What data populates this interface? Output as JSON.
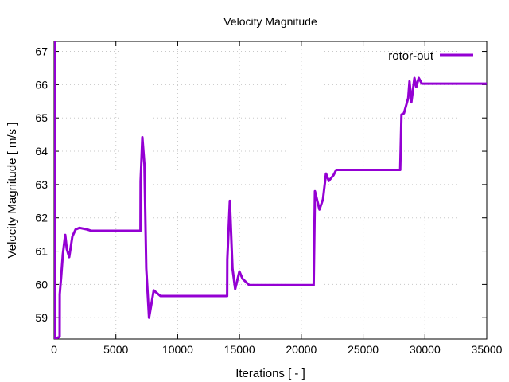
{
  "chart_data": {
    "type": "line",
    "title": "Velocity Magnitude",
    "xlabel": "Iterations [ - ]",
    "ylabel": "Velocity Magnitude [ m/s ]",
    "xlim": [
      0,
      35000
    ],
    "ylim": [
      58.36,
      67.3
    ],
    "xticks": [
      0,
      5000,
      10000,
      15000,
      20000,
      25000,
      30000,
      35000
    ],
    "yticks": [
      59,
      60,
      61,
      62,
      63,
      64,
      65,
      66,
      67
    ],
    "grid": true,
    "legend_position": "top-right",
    "series": [
      {
        "name": "rotor-out",
        "color": "#9400d3",
        "points": [
          [
            0,
            67.3
          ],
          [
            30,
            67.3
          ],
          [
            60,
            58.36
          ],
          [
            450,
            58.43
          ],
          [
            460,
            59.7
          ],
          [
            580,
            60.25
          ],
          [
            710,
            60.9
          ],
          [
            900,
            61.49
          ],
          [
            1030,
            61.06
          ],
          [
            1220,
            60.82
          ],
          [
            1480,
            61.44
          ],
          [
            1740,
            61.65
          ],
          [
            2060,
            61.7
          ],
          [
            2700,
            61.65
          ],
          [
            3000,
            61.61
          ],
          [
            6990,
            61.61
          ],
          [
            7000,
            63.1
          ],
          [
            7140,
            64.42
          ],
          [
            7310,
            63.6
          ],
          [
            7460,
            60.48
          ],
          [
            7680,
            59.0
          ],
          [
            8060,
            59.82
          ],
          [
            8600,
            59.65
          ],
          [
            14000,
            59.65
          ],
          [
            14010,
            60.75
          ],
          [
            14220,
            62.51
          ],
          [
            14430,
            60.48
          ],
          [
            14650,
            59.86
          ],
          [
            14990,
            60.39
          ],
          [
            15250,
            60.17
          ],
          [
            15780,
            59.98
          ],
          [
            21000,
            59.98
          ],
          [
            21020,
            60.5
          ],
          [
            21100,
            62.8
          ],
          [
            21470,
            62.25
          ],
          [
            21750,
            62.56
          ],
          [
            22000,
            63.33
          ],
          [
            22220,
            63.11
          ],
          [
            22600,
            63.28
          ],
          [
            22820,
            63.44
          ],
          [
            28000,
            63.44
          ],
          [
            28100,
            65.1
          ],
          [
            28300,
            65.14
          ],
          [
            28650,
            65.6
          ],
          [
            28750,
            66.1
          ],
          [
            28900,
            65.47
          ],
          [
            29150,
            66.2
          ],
          [
            29300,
            65.93
          ],
          [
            29500,
            66.2
          ],
          [
            29750,
            66.03
          ],
          [
            35000,
            66.03
          ]
        ]
      }
    ]
  }
}
